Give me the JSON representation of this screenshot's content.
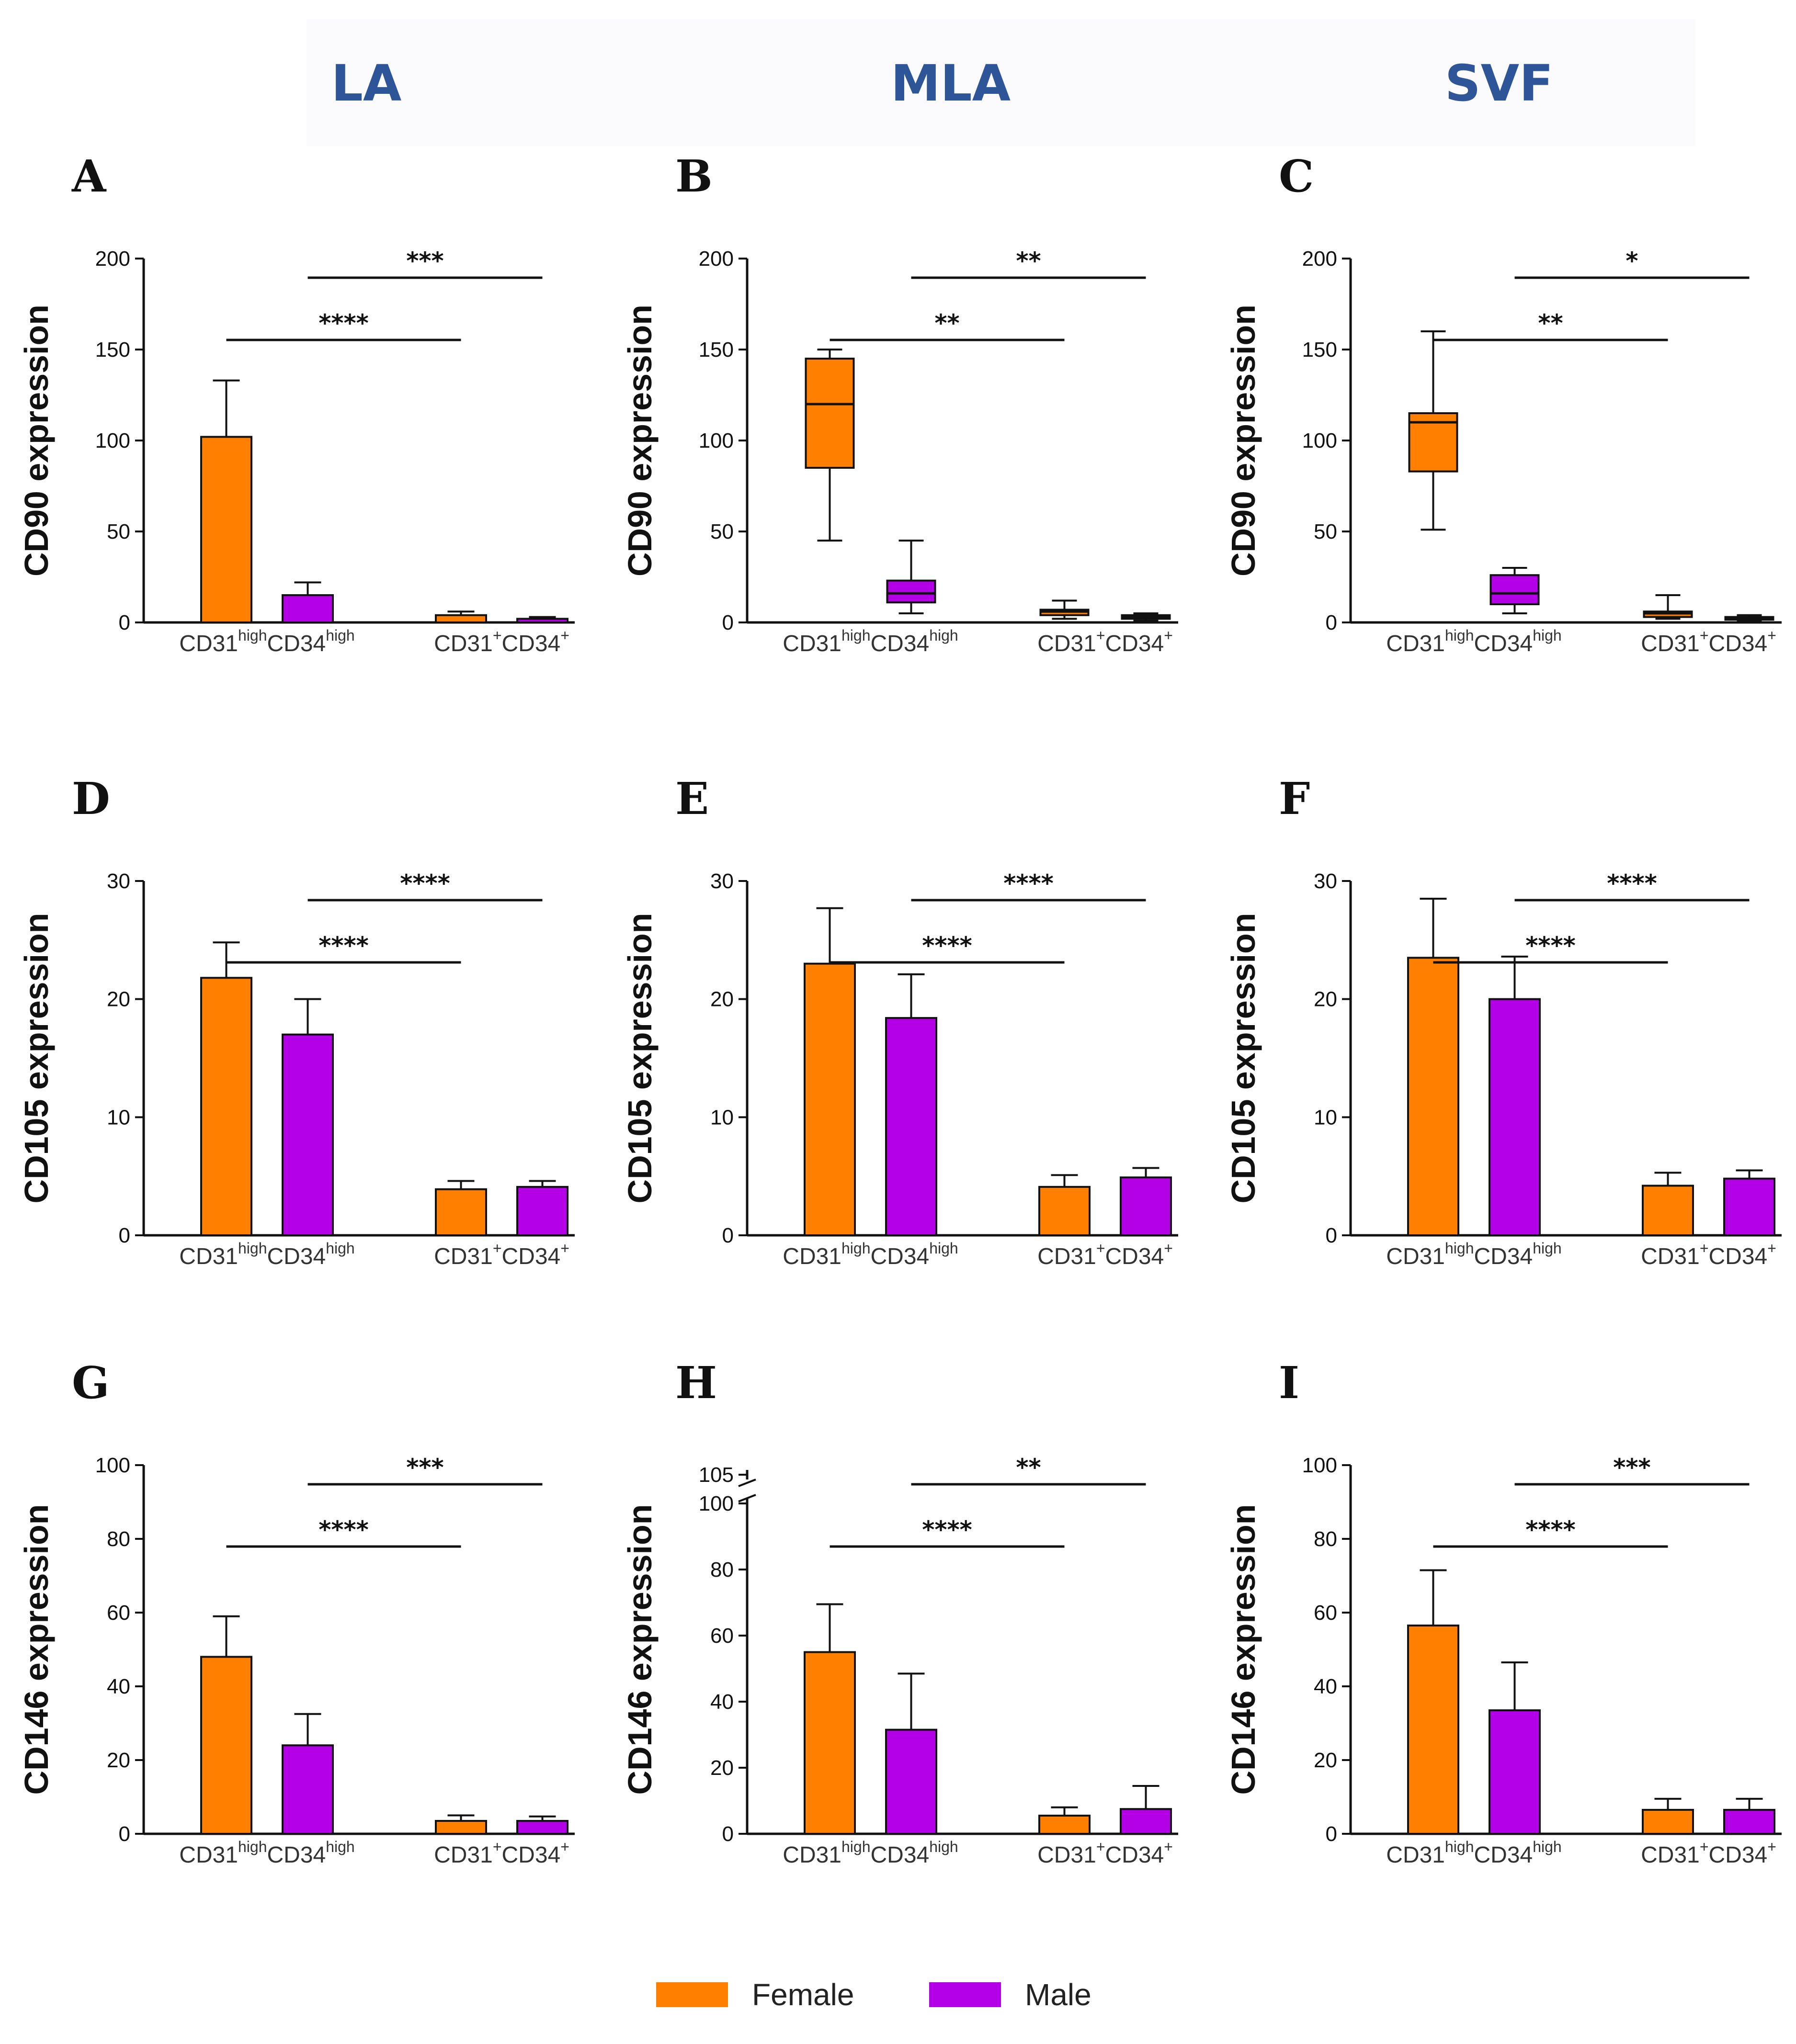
{
  "column_titles": [
    "LA",
    "MLA",
    "SVF"
  ],
  "legend": [
    {
      "label": "Female",
      "color": "#ff8000"
    },
    {
      "label": "Male",
      "color": "#b300e6"
    }
  ],
  "colors": {
    "female": "#ff8000",
    "male": "#b300e6",
    "axis": "#111111",
    "title": "#2e5597"
  },
  "chart_data": [
    {
      "panel": "A",
      "type": "bar",
      "ylabel": "CD90 expression",
      "ylim": [
        0,
        200
      ],
      "ticks": [
        0,
        50,
        100,
        150,
        200
      ],
      "categories": [
        "CD31^high CD34^high",
        "CD31^+ CD34^+"
      ],
      "series": [
        {
          "name": "Female",
          "values": [
            102,
            4
          ],
          "errors": [
            31,
            2
          ]
        },
        {
          "name": "Male",
          "values": [
            15,
            2
          ],
          "errors": [
            7,
            1
          ]
        }
      ],
      "significance": [
        {
          "label": "****",
          "from": "CD31^high CD34^high Female",
          "to": "CD31^+ CD34^+ Female"
        },
        {
          "label": "***",
          "from": "CD31^high CD34^high Male",
          "to": "CD31^+ CD34^+ Male"
        }
      ]
    },
    {
      "panel": "B",
      "type": "box",
      "ylabel": "CD90 expression",
      "ylim": [
        0,
        200
      ],
      "ticks": [
        0,
        50,
        100,
        150,
        200
      ],
      "categories": [
        "CD31^high CD34^high",
        "CD31^+ CD34^+"
      ],
      "series": [
        {
          "name": "Female",
          "boxes": [
            {
              "min": 45,
              "q1": 85,
              "median": 120,
              "q3": 145,
              "max": 150
            },
            {
              "min": 2,
              "q1": 4,
              "median": 6,
              "q3": 7,
              "max": 12
            }
          ]
        },
        {
          "name": "Male",
          "boxes": [
            {
              "min": 5,
              "q1": 11,
              "median": 16,
              "q3": 23,
              "max": 45
            },
            {
              "min": 1,
              "q1": 2,
              "median": 3,
              "q3": 4,
              "max": 5
            }
          ]
        }
      ],
      "significance": [
        {
          "label": "**",
          "from": "CD31^high CD34^high Female",
          "to": "CD31^+ CD34^+ Female"
        },
        {
          "label": "**",
          "from": "CD31^high CD34^high Male",
          "to": "CD31^+ CD34^+ Male"
        }
      ]
    },
    {
      "panel": "C",
      "type": "box",
      "ylabel": "CD90 expression",
      "ylim": [
        0,
        200
      ],
      "ticks": [
        0,
        50,
        100,
        150,
        200
      ],
      "categories": [
        "CD31^high CD34^high",
        "CD31^+ CD34^+"
      ],
      "series": [
        {
          "name": "Female",
          "boxes": [
            {
              "min": 51,
              "q1": 83,
              "median": 110,
              "q3": 115,
              "max": 160
            },
            {
              "min": 2,
              "q1": 3,
              "median": 5,
              "q3": 6,
              "max": 15
            }
          ]
        },
        {
          "name": "Male",
          "boxes": [
            {
              "min": 5,
              "q1": 10,
              "median": 16,
              "q3": 26,
              "max": 30
            },
            {
              "min": 1,
              "q1": 1.5,
              "median": 2,
              "q3": 3,
              "max": 4
            }
          ]
        }
      ],
      "significance": [
        {
          "label": "**",
          "from": "CD31^high CD34^high Female",
          "to": "CD31^+ CD34^+ Female"
        },
        {
          "label": "*",
          "from": "CD31^high CD34^high Male",
          "to": "CD31^+ CD34^+ Male"
        }
      ]
    },
    {
      "panel": "D",
      "type": "bar",
      "ylabel": "CD105 expression",
      "ylim": [
        0,
        30
      ],
      "ticks": [
        0,
        10,
        20,
        30
      ],
      "categories": [
        "CD31^high CD34^high",
        "CD31^+ CD34^+"
      ],
      "series": [
        {
          "name": "Female",
          "values": [
            21.8,
            3.9
          ],
          "errors": [
            3,
            0.7
          ]
        },
        {
          "name": "Male",
          "values": [
            17,
            4.1
          ],
          "errors": [
            3,
            0.5
          ]
        }
      ],
      "significance": [
        {
          "label": "****",
          "from": "CD31^high CD34^high Female",
          "to": "CD31^+ CD34^+ Female"
        },
        {
          "label": "****",
          "from": "CD31^high CD34^high Male",
          "to": "CD31^+ CD34^+ Male"
        }
      ]
    },
    {
      "panel": "E",
      "type": "bar",
      "ylabel": "CD105 expression",
      "ylim": [
        0,
        30
      ],
      "ticks": [
        0,
        10,
        20,
        30
      ],
      "categories": [
        "CD31^high CD34^high",
        "CD31^+ CD34^+"
      ],
      "series": [
        {
          "name": "Female",
          "values": [
            23,
            4.1
          ],
          "errors": [
            4.7,
            1
          ]
        },
        {
          "name": "Male",
          "values": [
            18.4,
            4.9
          ],
          "errors": [
            3.7,
            0.8
          ]
        }
      ],
      "significance": [
        {
          "label": "****",
          "from": "CD31^high CD34^high Female",
          "to": "CD31^+ CD34^+ Female"
        },
        {
          "label": "****",
          "from": "CD31^high CD34^high Male",
          "to": "CD31^+ CD34^+ Male"
        }
      ]
    },
    {
      "panel": "F",
      "type": "bar",
      "ylabel": "CD105 expression",
      "ylim": [
        0,
        30
      ],
      "ticks": [
        0,
        10,
        20,
        30
      ],
      "categories": [
        "CD31^high CD34^high",
        "CD31^+ CD34^+"
      ],
      "series": [
        {
          "name": "Female",
          "values": [
            23.5,
            4.2
          ],
          "errors": [
            5,
            1.1
          ]
        },
        {
          "name": "Male",
          "values": [
            20,
            4.8
          ],
          "errors": [
            3.6,
            0.7
          ]
        }
      ],
      "significance": [
        {
          "label": "****",
          "from": "CD31^high CD34^high Female",
          "to": "CD31^+ CD34^+ Female"
        },
        {
          "label": "****",
          "from": "CD31^high CD34^high Male",
          "to": "CD31^+ CD34^+ Male"
        }
      ]
    },
    {
      "panel": "G",
      "type": "bar",
      "ylabel": "CD146 expression",
      "ylim": [
        0,
        100
      ],
      "ticks": [
        0,
        20,
        40,
        60,
        80,
        100
      ],
      "categories": [
        "CD31^high CD34^high",
        "CD31^+ CD34^+"
      ],
      "series": [
        {
          "name": "Female",
          "values": [
            48,
            3.5
          ],
          "errors": [
            11,
            1.5
          ]
        },
        {
          "name": "Male",
          "values": [
            24,
            3.5
          ],
          "errors": [
            8.5,
            1.2
          ]
        }
      ],
      "significance": [
        {
          "label": "****",
          "from": "CD31^high CD34^high Female",
          "to": "CD31^+ CD34^+ Female"
        },
        {
          "label": "***",
          "from": "CD31^high CD34^high Male",
          "to": "CD31^+ CD34^+ Male"
        }
      ]
    },
    {
      "panel": "H",
      "type": "bar",
      "ylabel": "CD146 expression",
      "ylim": [
        0,
        105
      ],
      "axis_break": [
        100,
        105
      ],
      "ticks": [
        0,
        20,
        40,
        60,
        80,
        100,
        105
      ],
      "categories": [
        "CD31^high CD34^high",
        "CD31^+ CD34^+"
      ],
      "series": [
        {
          "name": "Female",
          "values": [
            55,
            5.5
          ],
          "errors": [
            14.5,
            2.5
          ]
        },
        {
          "name": "Male",
          "values": [
            31.5,
            7.5
          ],
          "errors": [
            17,
            7
          ]
        }
      ],
      "significance": [
        {
          "label": "****",
          "from": "CD31^high CD34^high Female",
          "to": "CD31^+ CD34^+ Female"
        },
        {
          "label": "**",
          "from": "CD31^high CD34^high Male",
          "to": "CD31^+ CD34^+ Male"
        }
      ]
    },
    {
      "panel": "I",
      "type": "bar",
      "ylabel": "CD146 expression",
      "ylim": [
        0,
        100
      ],
      "ticks": [
        0,
        20,
        40,
        60,
        80,
        100
      ],
      "categories": [
        "CD31^high CD34^high",
        "CD31^+ CD34^+"
      ],
      "series": [
        {
          "name": "Female",
          "values": [
            56.5,
            6.5
          ],
          "errors": [
            15,
            3
          ]
        },
        {
          "name": "Male",
          "values": [
            33.5,
            6.5
          ],
          "errors": [
            13,
            3
          ]
        }
      ],
      "significance": [
        {
          "label": "****",
          "from": "CD31^high CD34^high Female",
          "to": "CD31^+ CD34^+ Female"
        },
        {
          "label": "***",
          "from": "CD31^high CD34^high Male",
          "to": "CD31^+ CD34^+ Male"
        }
      ]
    }
  ]
}
